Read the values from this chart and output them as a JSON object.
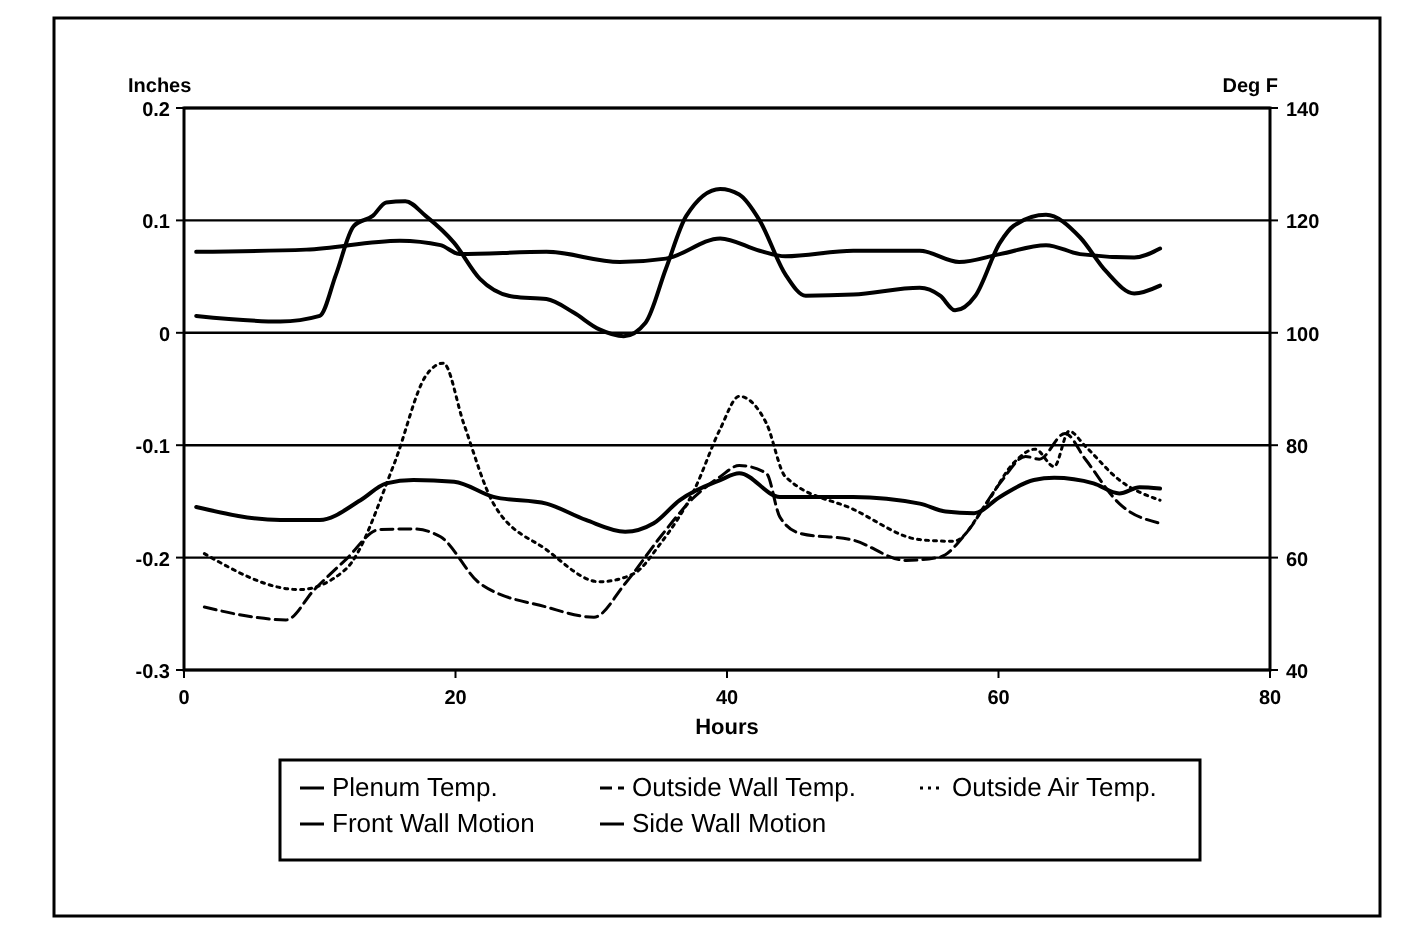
{
  "chart_data": {
    "type": "line",
    "xlabel": "Hours",
    "ylabel": "Inches",
    "y2label": "Deg F",
    "xlim": [
      0,
      80
    ],
    "xticks": [
      0,
      20,
      40,
      60,
      80
    ],
    "ylim": [
      -0.3,
      0.2
    ],
    "yticks": [
      -0.3,
      -0.2,
      -0.1,
      0,
      0.1,
      0.2
    ],
    "y2lim": [
      40,
      140
    ],
    "y2ticks": [
      40,
      60,
      80,
      100,
      120,
      140
    ],
    "grid": "y",
    "legend": "bottom",
    "marker": "none",
    "series": [
      {
        "name": "Plenum Temp.",
        "color": "#000000",
        "axis": "y2",
        "line_style": "solid",
        "x": [
          0.9,
          7.1,
          10,
          13,
          14.9,
          16.9,
          19.9,
          22.8,
          26.7,
          29.6,
          32.5,
          34.6,
          36.5,
          39.5,
          40.9,
          43.9,
          49.3,
          54.2,
          56.1,
          58.2,
          60.1,
          62.6,
          64.1,
          67,
          68.9,
          70.4,
          71.9
        ],
        "values": [
          69.0,
          66.7,
          66.7,
          70.2,
          73.2,
          73.8,
          73.5,
          70.8,
          69.6,
          66.7,
          64.6,
          66.1,
          70.2,
          73.8,
          75,
          70.8,
          70.8,
          69.6,
          68.2,
          67.9,
          70.8,
          73.8,
          74.2,
          73.2,
          71.4,
          72.5,
          72.3
        ]
      },
      {
        "name": "Outside Wall Temp.",
        "color": "#000000",
        "axis": "y2",
        "line_style": "dashed",
        "x": [
          1.5,
          5.2,
          7.5,
          9.6,
          11.9,
          14.4,
          16.9,
          18.9,
          21.8,
          26.7,
          30.2,
          32.5,
          35.1,
          37.6,
          39.5,
          40.9,
          42.9,
          43.9,
          45.4,
          49.3,
          53.2,
          55.7,
          57.6,
          60.1,
          62,
          63,
          64.9,
          66.4,
          68.9,
          71.9
        ],
        "values": [
          51.2,
          49.4,
          48.9,
          54.3,
          59.6,
          65,
          65.1,
          63.7,
          55.4,
          51.2,
          49.4,
          55.4,
          63.7,
          70.8,
          74.4,
          76.4,
          75,
          67.2,
          64.3,
          63.1,
          59.5,
          60.1,
          64.3,
          73.2,
          78,
          77.5,
          82.1,
          77.5,
          69.6,
          66.1
        ]
      },
      {
        "name": "Outside Air Temp.",
        "color": "#000000",
        "axis": "y2",
        "line_style": "dotted",
        "x": [
          1.5,
          8.5,
          11.9,
          15.5,
          17.8,
          19.1,
          20.6,
          22.8,
          26.7,
          30.6,
          33.1,
          35.1,
          37.6,
          39.5,
          40.9,
          42.9,
          44.3,
          49.3,
          54.2,
          56.7,
          59.1,
          61.1,
          62.7,
          64.1,
          65.2,
          66.4,
          68.9,
          71.9
        ],
        "values": [
          60.7,
          54.3,
          57.9,
          76.8,
          92.3,
          94.6,
          83.9,
          69.6,
          61.4,
          55.7,
          57.1,
          62.5,
          72.1,
          82.9,
          88.7,
          83.9,
          74.4,
          68.6,
          63.2,
          62.9,
          69.6,
          76.8,
          79.3,
          76.2,
          82.5,
          79.8,
          73.8,
          70.2
        ]
      },
      {
        "name": "Front Wall Motion",
        "color": "#000000",
        "line_style": "solid",
        "x": [
          0.9,
          7.1,
          10,
          11.2,
          12.5,
          13.9,
          14.9,
          16.3,
          17.8,
          19.9,
          21.8,
          24.3,
          26.7,
          28.7,
          30.6,
          32.4,
          34,
          35.5,
          37,
          39.5,
          40.9,
          42.4,
          44.3,
          45.8,
          49.3,
          54.2,
          55.7,
          56.8,
          58.3,
          60.1,
          61.1,
          63.5,
          66,
          67.9,
          70,
          71.9
        ],
        "values": [
          0.015,
          0.01,
          0.015,
          0.052,
          0.095,
          0.104,
          0.116,
          0.117,
          0.104,
          0.08,
          0.048,
          0.032,
          0.03,
          0.018,
          0.003,
          -0.003,
          0.009,
          0.057,
          0.104,
          0.128,
          0.123,
          0.1,
          0.052,
          0.033,
          0.034,
          0.04,
          0.033,
          0.02,
          0.033,
          0.08,
          0.095,
          0.105,
          0.085,
          0.055,
          0.035,
          0.042
        ]
      },
      {
        "name": "Side Wall Motion",
        "color": "#000000",
        "line_style": "solid",
        "x": [
          0.9,
          9,
          15.9,
          18.9,
          20.3,
          26.7,
          32.1,
          35.5,
          39.5,
          42.4,
          44.3,
          49.3,
          54.2,
          57.1,
          60.1,
          63.5,
          66,
          70,
          71.9
        ],
        "values": [
          0.072,
          0.074,
          0.082,
          0.078,
          0.07,
          0.072,
          0.063,
          0.066,
          0.084,
          0.073,
          0.068,
          0.073,
          0.073,
          0.063,
          0.07,
          0.078,
          0.07,
          0.067,
          0.075
        ]
      }
    ]
  }
}
